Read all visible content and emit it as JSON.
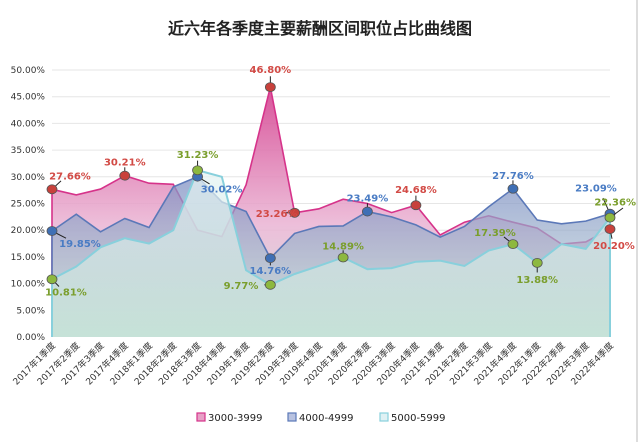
{
  "chart_data": {
    "type": "area",
    "title": "近六年各季度主要薪酬区间职位占比曲线图",
    "xlabel": "",
    "ylabel": "",
    "ylim": [
      0,
      50
    ],
    "yticks": [
      "0.00%",
      "5.00%",
      "10.00%",
      "15.00%",
      "20.00%",
      "25.00%",
      "30.00%",
      "35.00%",
      "40.00%",
      "45.00%",
      "50.00%"
    ],
    "grid": true,
    "legend_position": "bottom",
    "categories": [
      "2017年1季度",
      "2017年2季度",
      "2017年3季度",
      "2017年4季度",
      "2018年1季度",
      "2018年2季度",
      "2018年3季度",
      "2018年4季度",
      "2019年1季度",
      "2019年2季度",
      "2019年3季度",
      "2019年4季度",
      "2020年1季度",
      "2020年2季度",
      "2020年3季度",
      "2020年4季度",
      "2021年1季度",
      "2021年2季度",
      "2021年3季度",
      "2021年4季度",
      "2022年1季度",
      "2022年2季度",
      "2022年3季度",
      "2022年4季度"
    ],
    "series": [
      {
        "name": "3000-3999",
        "color": "#d6338a",
        "marker_color": "#c8413c",
        "label_color": "#d24a45",
        "values": [
          27.66,
          26.6,
          27.7,
          30.21,
          28.8,
          28.6,
          20.0,
          18.8,
          28.5,
          46.8,
          23.26,
          24.0,
          25.8,
          25.0,
          23.3,
          24.68,
          19.1,
          21.5,
          22.7,
          21.5,
          20.4,
          17.4,
          17.8,
          20.2
        ],
        "labeled": [
          {
            "index": 0,
            "text": "27.66%"
          },
          {
            "index": 3,
            "text": "30.21%"
          },
          {
            "index": 9,
            "text": "46.80%"
          },
          {
            "index": 10,
            "text": "23.26%"
          },
          {
            "index": 15,
            "text": "24.68%"
          },
          {
            "index": 23,
            "text": "20.20%"
          }
        ]
      },
      {
        "name": "4000-4999",
        "color": "#5b78b8",
        "marker_color": "#3f6fb5",
        "label_color": "#4a7cc4",
        "values": [
          19.85,
          23.0,
          19.7,
          22.2,
          20.5,
          28.1,
          30.02,
          25.3,
          23.5,
          14.76,
          19.4,
          20.7,
          20.8,
          23.49,
          22.5,
          21.0,
          18.7,
          20.7,
          24.4,
          27.76,
          21.9,
          21.2,
          21.7,
          23.09
        ],
        "labeled": [
          {
            "index": 0,
            "text": "19.85%"
          },
          {
            "index": 6,
            "text": "30.02%"
          },
          {
            "index": 9,
            "text": "14.76%"
          },
          {
            "index": 13,
            "text": "23.49%"
          },
          {
            "index": 19,
            "text": "27.76%"
          },
          {
            "index": 23,
            "text": "23.09%"
          }
        ]
      },
      {
        "name": "5000-5999",
        "color": "#88d0dc",
        "marker_color": "#8db83f",
        "label_color": "#7a9e2c",
        "values": [
          10.81,
          13.2,
          16.8,
          18.5,
          17.5,
          20.0,
          31.23,
          30.0,
          12.5,
          9.77,
          11.8,
          13.3,
          14.89,
          12.7,
          12.9,
          14.1,
          14.3,
          13.3,
          16.2,
          17.39,
          13.88,
          17.4,
          16.5,
          22.36
        ],
        "labeled": [
          {
            "index": 0,
            "text": "10.81%"
          },
          {
            "index": 6,
            "text": "31.23%"
          },
          {
            "index": 9,
            "text": "9.77%"
          },
          {
            "index": 12,
            "text": "14.89%"
          },
          {
            "index": 19,
            "text": "17.39%"
          },
          {
            "index": 20,
            "text": "13.88%"
          },
          {
            "index": 23,
            "text": "22.36%"
          }
        ]
      }
    ]
  }
}
